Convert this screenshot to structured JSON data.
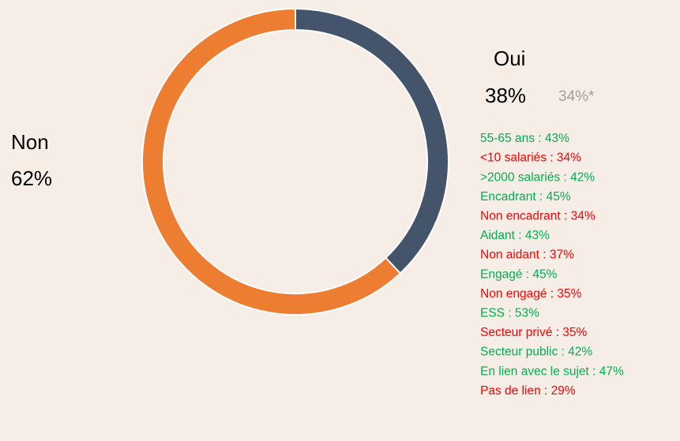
{
  "chart_data": {
    "type": "pie",
    "donut": true,
    "categories": [
      "Oui",
      "Non"
    ],
    "values": [
      38,
      62
    ],
    "value_labels": [
      "38%",
      "62%"
    ],
    "colors": [
      "#44546a",
      "#ed7d31"
    ],
    "annotation": "34%*",
    "breakdown": [
      {
        "text": "55-65 ans : 43%",
        "color": "#00b050"
      },
      {
        "text": "<10 salariés : 34%",
        "color": "#ff0000"
      },
      {
        "text": ">2000 salariés : 42%",
        "color": "#00b050"
      },
      {
        "text": "Encadrant : 45%",
        "color": "#00b050"
      },
      {
        "text": "Non encadrant : 34%",
        "color": "#ff0000"
      },
      {
        "text": "Aidant : 43%",
        "color": "#00b050"
      },
      {
        "text": "Non aidant : 37%",
        "color": "#ff0000"
      },
      {
        "text": "Engagé : 45%",
        "color": "#00b050"
      },
      {
        "text": "Non engagé : 35%",
        "color": "#ff0000"
      },
      {
        "text": "ESS : 53%",
        "color": "#00b050"
      },
      {
        "text": "Secteur privé : 35%",
        "color": "#ff0000"
      },
      {
        "text": "Secteur public : 42%",
        "color": "#00b050"
      },
      {
        "text": "En lien avec le sujet : 47%",
        "color": "#00b050"
      },
      {
        "text": "Pas de lien : 29%",
        "color": "#ff0000"
      }
    ]
  }
}
